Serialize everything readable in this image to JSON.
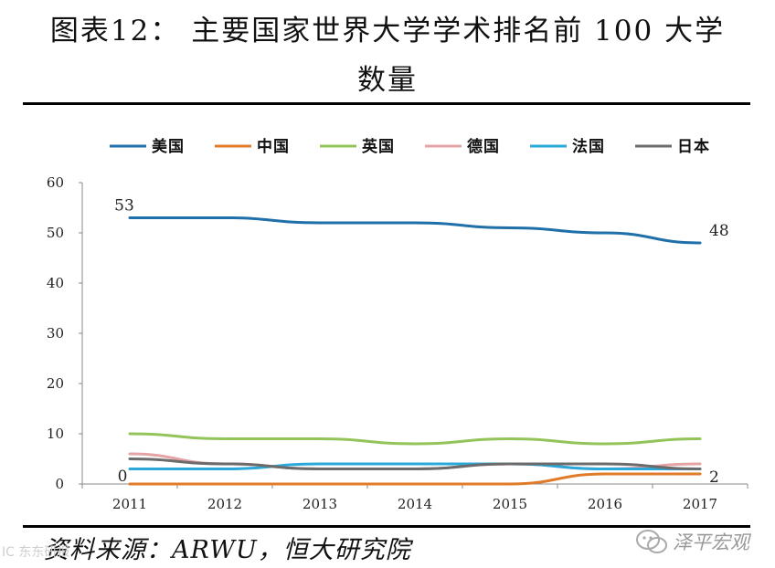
{
  "header": {
    "title_line1": "图表12： 主要国家世界大学学术排名前 100 大学",
    "title_line2": "数量"
  },
  "footer": {
    "source": "资料来源：ARWU，恒大研究院",
    "watermark_left": "IC 东东研报",
    "watermark_right": "泽平宏观"
  },
  "chart_data": {
    "type": "line",
    "x": [
      "2011",
      "2012",
      "2013",
      "2014",
      "2015",
      "2016",
      "2017"
    ],
    "ylim": [
      0,
      60
    ],
    "yticks": [
      0,
      10,
      20,
      30,
      40,
      50,
      60
    ],
    "grid": false,
    "legend_position": "top",
    "series": [
      {
        "name": "美国",
        "color": "#1f6fa8",
        "values": [
          53,
          53,
          52,
          52,
          51,
          50,
          48
        ]
      },
      {
        "name": "中国",
        "color": "#e07b2a",
        "values": [
          0,
          0,
          0,
          0,
          0,
          2,
          2
        ]
      },
      {
        "name": "英国",
        "color": "#92c45a",
        "values": [
          10,
          9,
          9,
          8,
          9,
          8,
          9
        ]
      },
      {
        "name": "德国",
        "color": "#e5a3a6",
        "values": [
          6,
          4,
          3,
          3,
          4,
          3,
          4
        ]
      },
      {
        "name": "法国",
        "color": "#2aa9d9",
        "values": [
          3,
          3,
          4,
          4,
          4,
          3,
          3
        ]
      },
      {
        "name": "日本",
        "color": "#6b6b6b",
        "values": [
          5,
          4,
          3,
          3,
          4,
          4,
          3
        ]
      }
    ],
    "annotations": [
      {
        "series": 0,
        "index": 0,
        "text": "53"
      },
      {
        "series": 0,
        "index": 6,
        "text": "48"
      },
      {
        "series": 1,
        "index": 0,
        "text": "0"
      },
      {
        "series": 1,
        "index": 6,
        "text": "2"
      }
    ]
  }
}
